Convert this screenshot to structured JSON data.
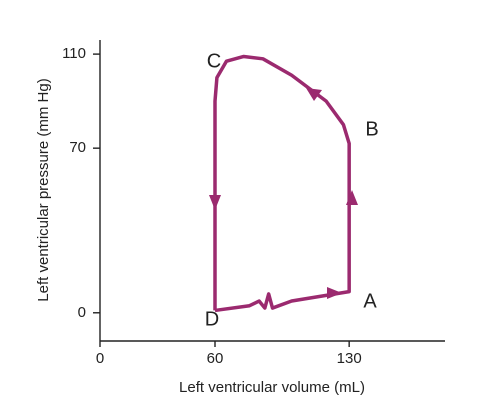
{
  "chart_data": {
    "type": "line",
    "x_label": "Left ventricular volume (mL)",
    "y_label": "Left ventricular pressure (mm Hg)",
    "x": [
      60,
      78,
      83,
      86,
      88,
      90,
      100,
      130,
      130,
      127,
      118,
      100,
      85,
      75,
      66,
      61,
      60,
      60
    ],
    "values": [
      1,
      3,
      5,
      2,
      8,
      2,
      5,
      9,
      72,
      80,
      90,
      101,
      108,
      109,
      107,
      100,
      90,
      1
    ],
    "color": "#9b2a6f",
    "xlim": [
      0,
      180
    ],
    "ylim": [
      -12,
      116
    ],
    "xticks": [
      0,
      60,
      130
    ],
    "yticks": [
      0,
      70,
      110
    ],
    "grid": false,
    "annotations": [
      "A",
      "B",
      "C",
      "D"
    ]
  }
}
